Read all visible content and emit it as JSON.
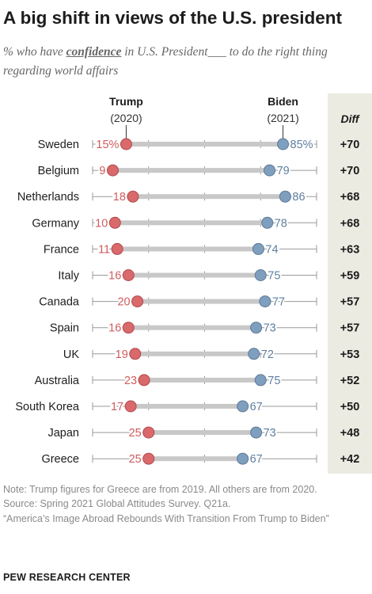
{
  "title": "A big shift in views of the U.S. president",
  "subtitle": {
    "before": "% who have ",
    "emphasis": "confidence",
    "after": " in U.S. President___ to do the right thing regarding world affairs"
  },
  "chart_data": {
    "type": "dot",
    "series": [
      {
        "name": "Trump",
        "period": "(2020)",
        "color": "#d9696b"
      },
      {
        "name": "Biden",
        "period": "(2021)",
        "color": "#7f9fbf"
      }
    ],
    "diff_header": "Diff",
    "rows": [
      {
        "country": "Sweden",
        "trump": 15,
        "trump_label": "15%",
        "biden": 85,
        "biden_label": "85%",
        "diff": "+70"
      },
      {
        "country": "Belgium",
        "trump": 9,
        "trump_label": "9",
        "biden": 79,
        "biden_label": "79",
        "diff": "+70"
      },
      {
        "country": "Netherlands",
        "trump": 18,
        "trump_label": "18",
        "biden": 86,
        "biden_label": "86",
        "diff": "+68"
      },
      {
        "country": "Germany",
        "trump": 10,
        "trump_label": "10",
        "biden": 78,
        "biden_label": "78",
        "diff": "+68"
      },
      {
        "country": "France",
        "trump": 11,
        "trump_label": "11",
        "biden": 74,
        "biden_label": "74",
        "diff": "+63"
      },
      {
        "country": "Italy",
        "trump": 16,
        "trump_label": "16",
        "biden": 75,
        "biden_label": "75",
        "diff": "+59"
      },
      {
        "country": "Canada",
        "trump": 20,
        "trump_label": "20",
        "biden": 77,
        "biden_label": "77",
        "diff": "+57"
      },
      {
        "country": "Spain",
        "trump": 16,
        "trump_label": "16",
        "biden": 73,
        "biden_label": "73",
        "diff": "+57"
      },
      {
        "country": "UK",
        "trump": 19,
        "trump_label": "19",
        "biden": 72,
        "biden_label": "72",
        "diff": "+53"
      },
      {
        "country": "Australia",
        "trump": 23,
        "trump_label": "23",
        "biden": 75,
        "biden_label": "75",
        "diff": "+52"
      },
      {
        "country": "South Korea",
        "trump": 17,
        "trump_label": "17",
        "biden": 67,
        "biden_label": "67",
        "diff": "+50"
      },
      {
        "country": "Japan",
        "trump": 25,
        "trump_label": "25",
        "biden": 73,
        "biden_label": "73",
        "diff": "+48"
      },
      {
        "country": "Greece",
        "trump": 25,
        "trump_label": "25",
        "biden": 67,
        "biden_label": "67",
        "diff": "+42"
      }
    ],
    "xlim": [
      0,
      100
    ]
  },
  "notes": {
    "note": "Note: Trump figures for Greece are from 2019. All others are from 2020.",
    "source": "Source: Spring 2021 Global Attitudes Survey. Q21a.",
    "report": "“America’s Image Abroad Rebounds With Transition From Trump to Biden”"
  },
  "brand": "PEW RESEARCH CENTER"
}
